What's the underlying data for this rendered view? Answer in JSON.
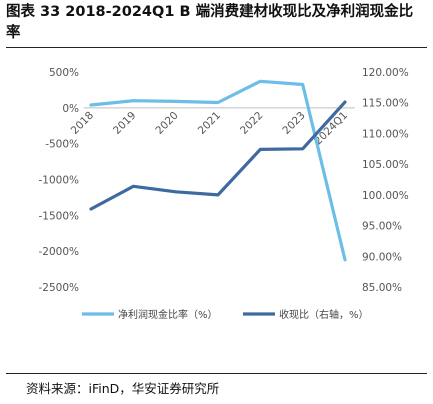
{
  "title": "图表 33 2018-2024Q1 B 端消费建材收现比及净利润现金比率",
  "source": "资料来源：iFinD，华安证券研究所",
  "chart_data": {
    "type": "line",
    "categories": [
      "2018",
      "2019",
      "2020",
      "2021",
      "2022",
      "2023",
      "2024Q1"
    ],
    "series": [
      {
        "name": "净利润现金比率（%）",
        "axis": "left",
        "color": "#6cbde8",
        "values": [
          40,
          100,
          90,
          75,
          370,
          325,
          -2120
        ]
      },
      {
        "name": "收现比（右轴，%）",
        "axis": "right",
        "color": "#3e6aa0",
        "values": [
          97.7,
          101.4,
          100.5,
          100.0,
          107.4,
          107.5,
          115.1
        ]
      }
    ],
    "left_axis": {
      "min": -2500,
      "max": 500,
      "step": 500,
      "tick_labels": [
        "500%",
        "0%",
        "-500%",
        "-1000%",
        "-1500%",
        "-2000%",
        "-2500%"
      ]
    },
    "right_axis": {
      "min": 85,
      "max": 120,
      "step": 5,
      "tick_labels": [
        "120.00%",
        "115.00%",
        "110.00%",
        "105.00%",
        "100.00%",
        "95.00%",
        "90.00%",
        "85.00%"
      ]
    },
    "legend_position": "bottom",
    "grid": false
  }
}
